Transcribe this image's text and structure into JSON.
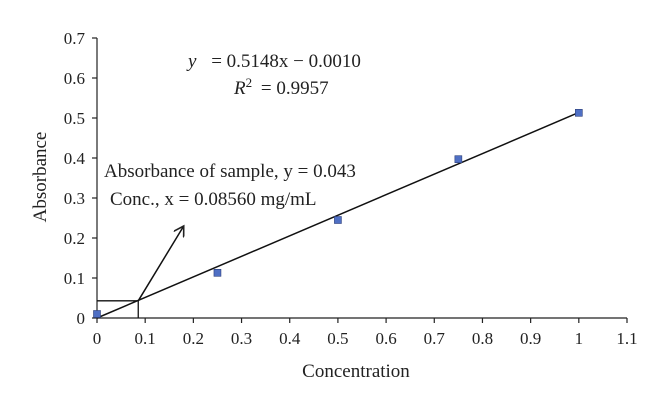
{
  "chart_data": {
    "type": "scatter",
    "title": "",
    "xlabel": "Concentration",
    "ylabel": "Absorbance",
    "xlim": [
      0,
      1.1
    ],
    "ylim": [
      0,
      0.7
    ],
    "x_ticks": [
      "0",
      "0.1",
      "0.2",
      "0.3",
      "0.4",
      "0.5",
      "0.6",
      "0.7",
      "0.8",
      "0.9",
      "1",
      "1.1"
    ],
    "y_ticks": [
      "0",
      "0.1",
      "0.2",
      "0.3",
      "0.4",
      "0.5",
      "0.6",
      "0.7"
    ],
    "grid": false,
    "series": [
      {
        "x": [
          0,
          0.25,
          0.5,
          0.75,
          1.0
        ],
        "y": [
          0.01,
          0.113,
          0.245,
          0.397,
          0.513
        ],
        "color": "#4f6fc4"
      }
    ],
    "trendline": {
      "slope": 0.5148,
      "intercept": -0.001,
      "x_range": [
        0,
        1.0
      ],
      "equation_text": "= 0.5148x − 0.0010",
      "r2_text": "= 0.9957"
    },
    "sample": {
      "x": 0.0856,
      "y": 0.043
    },
    "annotations": {
      "line1": "Absorbance of sample, y = 0.043",
      "line2": "Conc., x = 0.08560 mg/mL"
    }
  }
}
